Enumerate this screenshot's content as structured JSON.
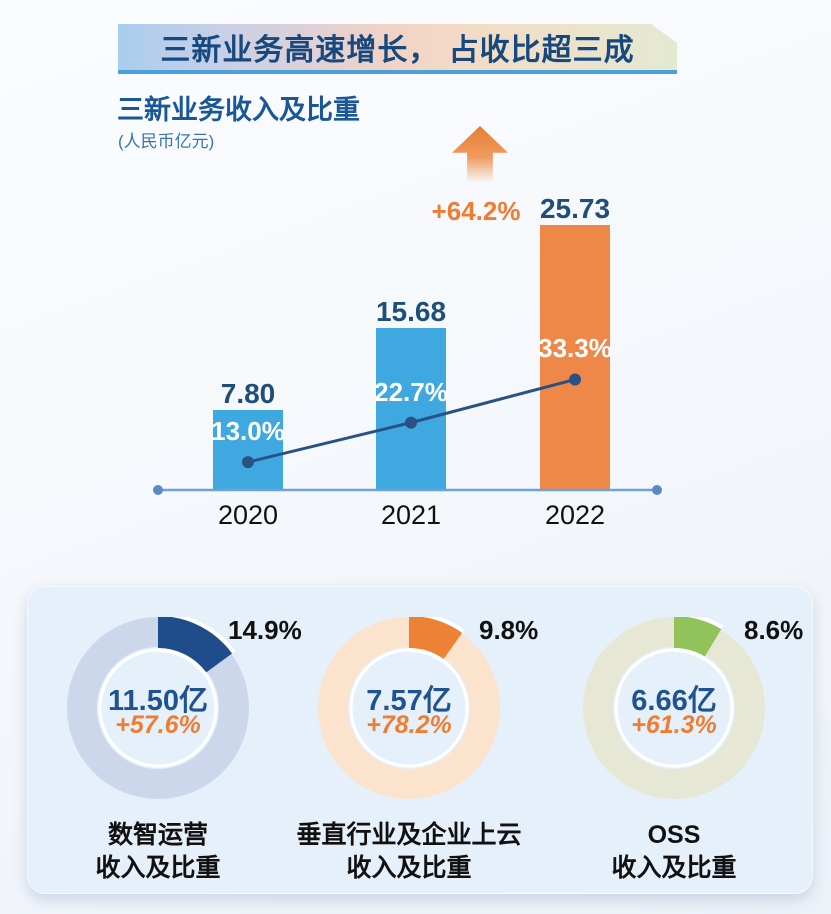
{
  "banner": {
    "title": "三新业务高速增长， 占收比超三成"
  },
  "colors": {
    "banner_text": "#17497F",
    "underline": "#4AA0D8",
    "title_blue": "#1A5796",
    "unit_blue": "#3A74AB",
    "navy": "#1F4E79",
    "navy2": "#1F5291",
    "orange_accent": "#EE7D33",
    "bar_blue": "#3FA8E0",
    "bar_orange": "#EE8747",
    "line_navy": "#2A5183",
    "axis_blue": "#6FA3D8",
    "axis_dot": "#5C88C5",
    "panel_bg": "#E6F0FA",
    "label_black": "#111111"
  },
  "chart_data": [
    {
      "type": "bar",
      "title": "三新业务收入及比重",
      "unit": "(人民币亿元)",
      "categories": [
        "2020",
        "2021",
        "2022"
      ],
      "series": [
        {
          "name": "三新业务收入",
          "type": "bar",
          "unit": "人民币亿元",
          "values": [
            7.8,
            15.68,
            25.73
          ],
          "labels": [
            "7.80",
            "15.68",
            "25.73"
          ]
        },
        {
          "name": "占收比",
          "type": "line",
          "unit": "%",
          "values": [
            13.0,
            22.7,
            33.3
          ],
          "labels": [
            "13.0%",
            "22.7%",
            "33.3%"
          ]
        }
      ],
      "yoy_growth_label": "+64.2%",
      "bar_colors": [
        "#3FA8E0",
        "#3FA8E0",
        "#EE8747"
      ],
      "line_color": "#2A5183",
      "axis_color": "#6FA3D8",
      "legend": "none",
      "grid": "off"
    },
    {
      "type": "donut",
      "name": "数智运营",
      "pct": 14.9,
      "pct_label": "14.9%",
      "value_label": "11.50亿",
      "growth_label": "+57.6%",
      "label_line1": "数智运营",
      "label_line2": "收入及比重",
      "ring_color": "#CCD7EB",
      "segment_color": "#1F4D8C"
    },
    {
      "type": "donut",
      "name": "垂直行业及企业上云",
      "pct": 9.8,
      "pct_label": "9.8%",
      "value_label": "7.57亿",
      "growth_label": "+78.2%",
      "label_line1": "垂直行业及企业上云",
      "label_line2": "收入及比重",
      "ring_color": "#FBE3CE",
      "segment_color": "#ED8236"
    },
    {
      "type": "donut",
      "name": "OSS",
      "pct": 8.6,
      "pct_label": "8.6%",
      "value_label": "6.66亿",
      "growth_label": "+61.3%",
      "label_line1": "OSS",
      "label_line2": "收入及比重",
      "ring_color": "#E7E7D5",
      "segment_color": "#92C25A"
    }
  ]
}
